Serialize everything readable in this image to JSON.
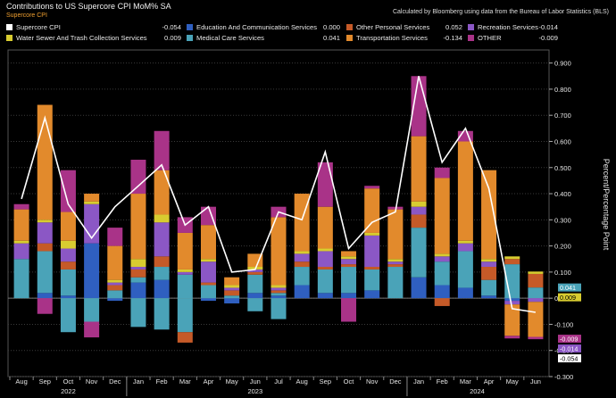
{
  "chart_data": {
    "type": "bar",
    "stacked": true,
    "title": "Contributions to US Supercore CPI MoM% SA",
    "subtitle": "Supercore CPI",
    "source": "Calculated by Bloomberg using data from the Bureau of Labor Statistics (BLS)",
    "ylabel": "Percent/Percentage Point",
    "ylim": [
      -0.3,
      0.95
    ],
    "yticks": [
      "0.900",
      "0.800",
      "0.700",
      "0.600",
      "0.500",
      "0.400",
      "0.300",
      "0.200",
      "0.100",
      "0.000",
      "-0.100",
      "-0.200",
      "-0.300"
    ],
    "categories": [
      "Aug",
      "Sep",
      "Oct",
      "Nov",
      "Dec",
      "Jan",
      "Feb",
      "Mar",
      "Apr",
      "May",
      "Jun",
      "Jul",
      "Aug",
      "Sep",
      "Oct",
      "Nov",
      "Dec",
      "Jan",
      "Feb",
      "Mar",
      "Apr",
      "May",
      "Jun"
    ],
    "tick_labels": [
      "Aug",
      "Sep",
      "Oct",
      "Nov",
      "Dec",
      "Jan",
      "Feb",
      "Mar",
      "Apr",
      "May",
      "Jun",
      "Jul",
      "Aug",
      "Sep",
      "Oct",
      "Nov",
      "Dec",
      "Jan",
      "Feb",
      "Mar",
      "Apr",
      "May",
      "Jun"
    ],
    "year_labels": [
      {
        "label": "2022",
        "at": 2
      },
      {
        "label": "2023",
        "at": 10
      },
      {
        "label": "2024",
        "at": 19.5
      }
    ],
    "series": [
      {
        "name": "Education And Communication Services",
        "legend_value": "0.000",
        "color": "#2f5fc0",
        "values": [
          0.0,
          0.02,
          0.01,
          0.21,
          -0.01,
          0.06,
          0.07,
          0.0,
          -0.01,
          -0.02,
          0.02,
          0.01,
          0.05,
          0.02,
          0.02,
          0.03,
          0.0,
          0.08,
          0.05,
          0.04,
          0.01,
          -0.01,
          0.0
        ]
      },
      {
        "name": "Medical Care Services",
        "legend_value": "0.041",
        "color": "#4aa3b8",
        "values": [
          0.15,
          0.16,
          0.1,
          -0.09,
          0.03,
          0.02,
          0.05,
          0.09,
          0.05,
          0.01,
          0.07,
          0.01,
          0.07,
          0.09,
          0.1,
          0.08,
          0.12,
          0.19,
          0.09,
          0.14,
          0.06,
          0.13,
          0.041
        ]
      },
      {
        "name": "Medical Care Services (negative)",
        "color": "#4aa3b8",
        "hidden_in_legend": true,
        "values": [
          0,
          0,
          -0.13,
          0,
          0,
          -0.11,
          -0.12,
          -0.13,
          0,
          0,
          -0.05,
          -0.08,
          0,
          0,
          0,
          0,
          0,
          0,
          0,
          0,
          0,
          0,
          0
        ]
      },
      {
        "name": "Other Personal Services",
        "legend_value": "0.052",
        "color": "#c55a28",
        "values": [
          0.0,
          0.03,
          0.03,
          0.0,
          0.02,
          0.03,
          0.04,
          -0.04,
          0.01,
          0.02,
          0.01,
          0.01,
          0.02,
          0.01,
          0.01,
          0.01,
          0.01,
          0.05,
          -0.03,
          0.0,
          0.05,
          0.02,
          0.052
        ]
      },
      {
        "name": "Recreation Services",
        "legend_value": "-0.014",
        "color": "#8b57c5",
        "values": [
          0.06,
          0.08,
          0.05,
          0.15,
          0.01,
          0.01,
          0.13,
          0.01,
          0.08,
          0.01,
          0.01,
          0.01,
          0.03,
          0.06,
          0.02,
          0.12,
          0.01,
          0.03,
          0.02,
          0.03,
          0.02,
          -0.014,
          -0.014
        ]
      },
      {
        "name": "Water Sewer And Trash Collection Services",
        "legend_value": "0.009",
        "color": "#d8cc30",
        "values": [
          0.01,
          0.01,
          0.03,
          0.01,
          0.01,
          0.03,
          0.03,
          0.01,
          0.01,
          0.01,
          0.01,
          0.01,
          0.01,
          0.01,
          0.01,
          0.01,
          0.01,
          0.02,
          0.01,
          0.01,
          0.01,
          0.01,
          0.009
        ]
      },
      {
        "name": "Transportation Services",
        "legend_value": "-0.134",
        "color": "#e28a2c",
        "values": [
          0.12,
          0.44,
          0.11,
          0.03,
          0.13,
          0.25,
          0.17,
          0.14,
          0.13,
          0.03,
          0.05,
          0.26,
          0.22,
          0.16,
          0.02,
          0.17,
          0.19,
          0.25,
          0.29,
          0.38,
          0.34,
          -0.12,
          -0.134
        ]
      },
      {
        "name": "OTHER",
        "legend_value": "-0.009",
        "color": "#a93388",
        "values": [
          0.02,
          -0.06,
          0.16,
          -0.06,
          0.07,
          0.13,
          0.15,
          0.06,
          0.07,
          0.0,
          0.0,
          0.04,
          0.0,
          0.17,
          -0.09,
          0.01,
          0.01,
          0.23,
          0.04,
          0.04,
          0.0,
          -0.01,
          -0.009
        ]
      }
    ],
    "line": {
      "name": "Supercore CPI",
      "legend_value": "-0.054",
      "color": "#ffffff",
      "values": [
        0.38,
        0.69,
        0.36,
        0.23,
        0.35,
        0.43,
        0.51,
        0.28,
        0.35,
        0.1,
        0.11,
        0.33,
        0.3,
        0.56,
        0.19,
        0.29,
        0.33,
        0.85,
        0.52,
        0.65,
        0.42,
        -0.04,
        -0.054
      ]
    },
    "end_labels": [
      {
        "text": "0.041",
        "color": "#4aa3b8",
        "text_color": "#ffffff",
        "value": 0.041
      },
      {
        "text": "0.009",
        "color": "#d8cc30",
        "text_color": "#000000",
        "value": 0.009
      },
      {
        "text": "-0.014",
        "color": "#8b57c5",
        "text_color": "#ffffff",
        "value": -0.014
      },
      {
        "text": "-0.054",
        "color": "#ffffff",
        "text_color": "#000000",
        "value": -0.054
      },
      {
        "text": "-0.009",
        "color": "#a93388",
        "text_color": "#ffffff",
        "value": -0.009
      }
    ]
  },
  "legend": [
    {
      "label": "Supercore CPI",
      "value": "-0.054",
      "color": "#ffffff"
    },
    {
      "label": "Education And Communication Services",
      "value": "0.000",
      "color": "#2f5fc0"
    },
    {
      "label": "Other Personal Services",
      "value": "0.052",
      "color": "#c55a28"
    },
    {
      "label": "Recreation Services",
      "value": "-0.014",
      "color": "#8b57c5"
    },
    {
      "label": "Water Sewer And Trash Collection Services",
      "value": "0.009",
      "color": "#d8cc30"
    },
    {
      "label": "Medical Care Services",
      "value": "0.041",
      "color": "#4aa3b8"
    },
    {
      "label": "Transportation Services",
      "value": "-0.134",
      "color": "#e28a2c"
    },
    {
      "label": "OTHER",
      "value": "-0.009",
      "color": "#a93388"
    }
  ]
}
